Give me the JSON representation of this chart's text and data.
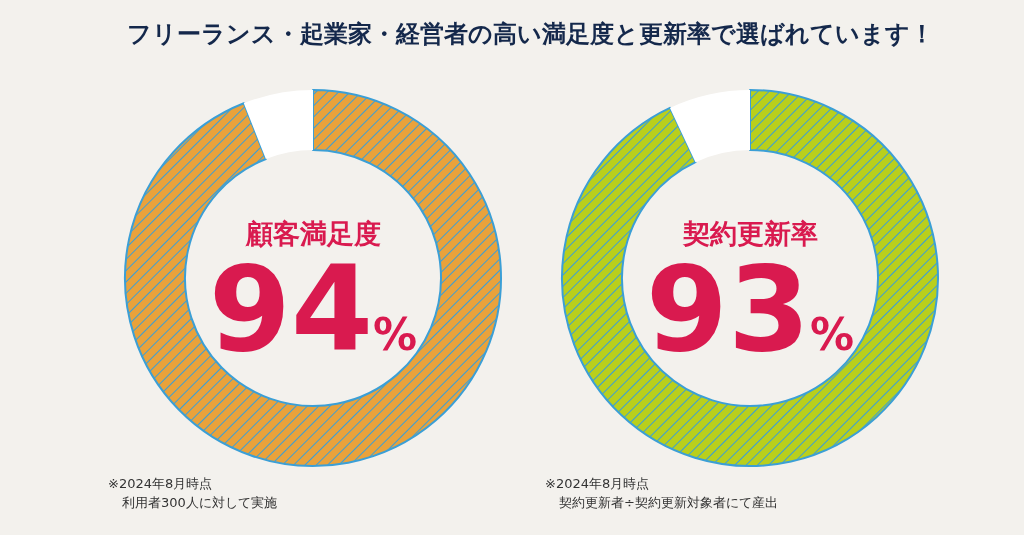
{
  "chart_data": [
    {
      "type": "donut",
      "title": "フリーランス・起業家・経営者の高い満足度と更新率で選ばれています！",
      "subtitle": "顧客満足度",
      "categories": [
        null,
        null
      ],
      "values": [
        94,
        6
      ],
      "colors": [
        "#e9a23b",
        "#ffffff"
      ],
      "value_labels": [
        "94%",
        null
      ],
      "annotations": [
        "※2024年8月時点",
        "利用者300人に対して実施"
      ]
    },
    {
      "type": "donut",
      "subtitle": "契約更新率",
      "categories": [
        null,
        null
      ],
      "values": [
        93,
        7
      ],
      "colors": [
        "#b9cf1c",
        "#ffffff"
      ],
      "value_labels": [
        "93%",
        null
      ],
      "annotations": [
        "※2024年8月時点",
        "契約更新者÷契約更新対象者にて産出"
      ]
    }
  ]
}
